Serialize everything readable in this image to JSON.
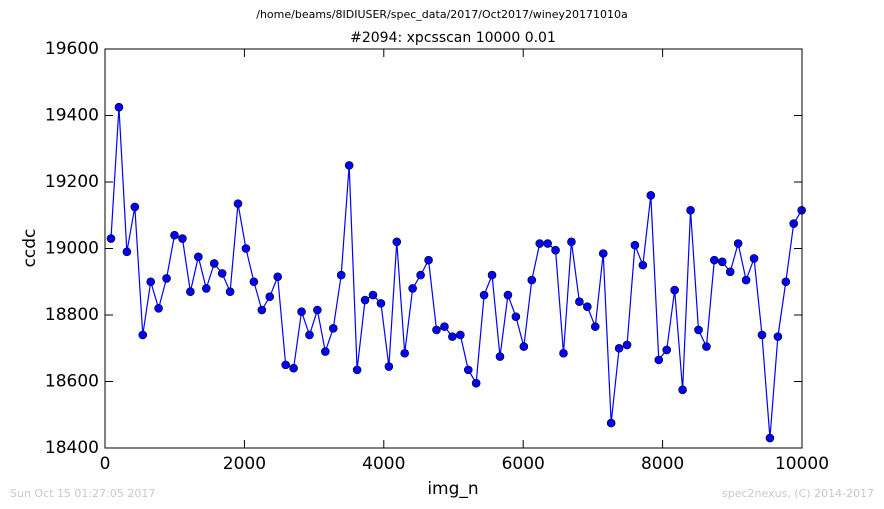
{
  "chart_data": {
    "type": "line",
    "title": "/home/beams/8IDIUSER/spec_data/2017/Oct2017/winey20171010a",
    "subtitle": "#2094: xpcsscan 10000 0.01",
    "x_label": "img_n",
    "y_label": "ccdc",
    "footer_left": "Sun Oct 15 01:27:05 2017",
    "footer_right": "spec2nexus, (C) 2014-2017",
    "xlim": [
      0,
      10000
    ],
    "xticks": [
      0,
      2000,
      4000,
      6000,
      8000,
      10000
    ],
    "ylim": [
      18400,
      19600
    ],
    "yticks": [
      18400,
      18600,
      18800,
      19000,
      19200,
      19400,
      19600
    ],
    "grid": false,
    "x": [
      86,
      200,
      314,
      428,
      542,
      656,
      769,
      883,
      997,
      1111,
      1225,
      1339,
      1453,
      1567,
      1681,
      1795,
      1908,
      2022,
      2136,
      2250,
      2364,
      2478,
      2592,
      2706,
      2820,
      2934,
      3047,
      3161,
      3275,
      3389,
      3503,
      3617,
      3731,
      3845,
      3959,
      4073,
      4186,
      4300,
      4414,
      4528,
      4642,
      4756,
      4870,
      4984,
      5098,
      5212,
      5325,
      5439,
      5553,
      5667,
      5781,
      5895,
      6009,
      6123,
      6237,
      6351,
      6464,
      6578,
      6692,
      6806,
      6920,
      7034,
      7148,
      7262,
      7376,
      7490,
      7603,
      7717,
      7831,
      7945,
      8059,
      8173,
      8287,
      8401,
      8515,
      8629,
      8742,
      8856,
      8970,
      9084,
      9198,
      9312,
      9426,
      9540,
      9654,
      9768,
      9881,
      9995
    ],
    "series": [
      {
        "color": "#0000ff",
        "values": [
          19030,
          19425,
          18990,
          19125,
          18740,
          18900,
          18820,
          18910,
          19040,
          19030,
          18870,
          18975,
          18880,
          18955,
          18925,
          18870,
          19135,
          19000,
          18900,
          18815,
          18855,
          18915,
          18650,
          18640,
          18810,
          18740,
          18815,
          18690,
          18760,
          18920,
          19250,
          18635,
          18845,
          18860,
          18835,
          18645,
          19020,
          18685,
          18880,
          18920,
          18965,
          18755,
          18765,
          18735,
          18740,
          18635,
          18595,
          18860,
          18920,
          18675,
          18860,
          18795,
          18705,
          18905,
          19015,
          19015,
          18995,
          18685,
          19020,
          18840,
          18825,
          18765,
          18985,
          18475,
          18700,
          18710,
          19010,
          18950,
          19160,
          18665,
          18695,
          18875,
          18575,
          19115,
          18755,
          18705,
          18965,
          18960,
          18930,
          19015,
          18905,
          18970,
          18740,
          18430,
          18735,
          18900,
          19075,
          19115
        ]
      }
    ]
  }
}
